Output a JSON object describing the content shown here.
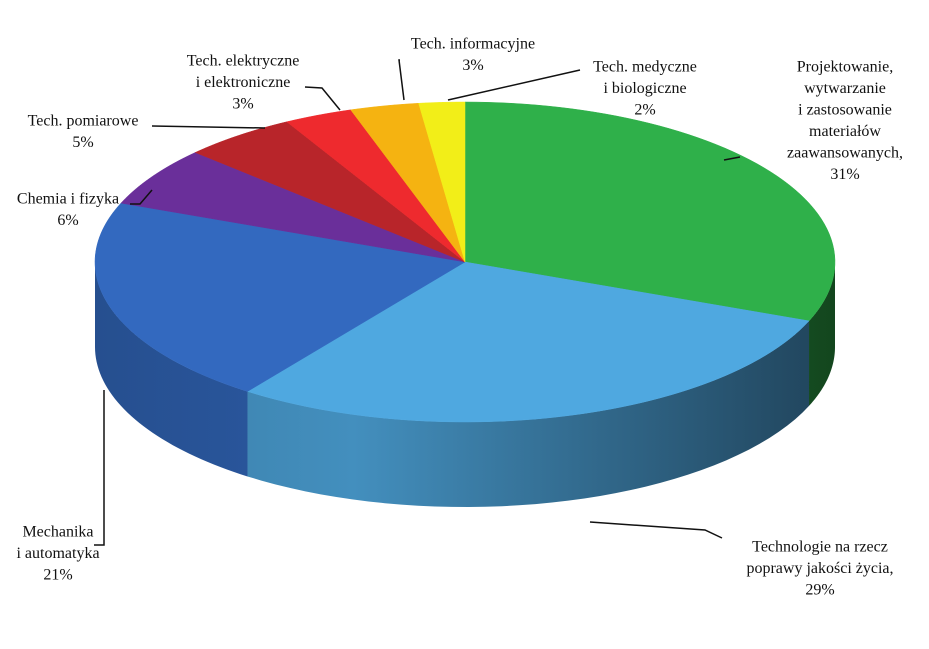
{
  "chart_data": {
    "type": "pie3d",
    "categories": [
      [
        "Projektowanie,",
        "wytwarzanie",
        "i zastosowanie",
        "materiałów",
        "zaawansowanych,"
      ],
      [
        "Technologie na rzecz",
        "poprawy jakości życia,"
      ],
      [
        "Mechanika",
        "i automatyka"
      ],
      [
        "Chemia i fizyka"
      ],
      [
        "Tech. pomiarowe"
      ],
      [
        "Tech. elektryczne",
        "i elektroniczne"
      ],
      [
        "Tech. informacyjne"
      ],
      [
        "Tech. medyczne",
        "i biologiczne"
      ]
    ],
    "values": [
      31,
      29,
      21,
      6,
      5,
      3,
      3,
      2
    ],
    "value_labels": [
      "31%",
      "29%",
      "21%",
      "6%",
      "5%",
      "3%",
      "3%",
      "2%"
    ],
    "colors": [
      "#2fb04a",
      "#4fa8e0",
      "#3369bf",
      "#6a2f9a",
      "#b8252a",
      "#ee2a2e",
      "#f5b311",
      "#f2ee18"
    ]
  }
}
